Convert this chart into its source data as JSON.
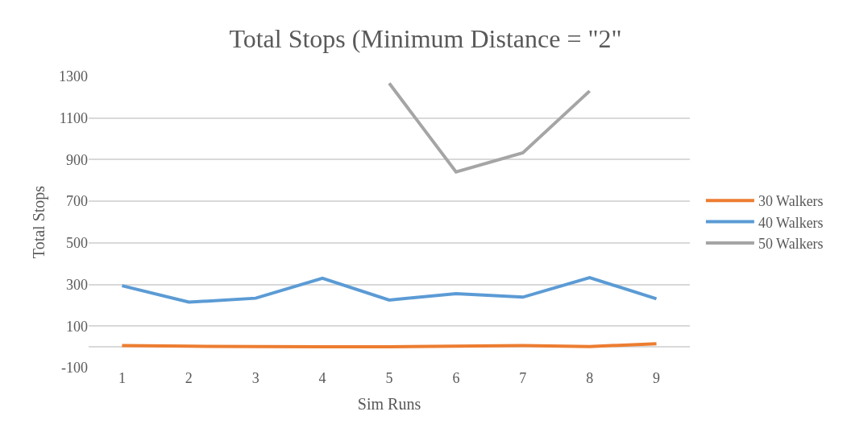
{
  "chart_data": {
    "type": "line",
    "title": "Total Stops (Minimum Distance = \"2\"",
    "xlabel": "Sim Runs",
    "ylabel": "Total Stops",
    "categories": [
      "1",
      "2",
      "3",
      "4",
      "5",
      "6",
      "7",
      "8",
      "9"
    ],
    "series": [
      {
        "name": "30 Walkers",
        "color": "#ed7d31",
        "values": [
          6,
          3,
          2,
          1,
          1,
          3,
          6,
          2,
          15
        ]
      },
      {
        "name": "40 Walkers",
        "color": "#5b9bd5",
        "values": [
          294,
          215,
          234,
          330,
          225,
          256,
          239,
          333,
          231
        ]
      },
      {
        "name": "50 Walkers",
        "color": "#a5a5a5",
        "values": [
          null,
          null,
          null,
          null,
          1267,
          841,
          933,
          1230,
          null
        ]
      }
    ],
    "ylim": [
      -100,
      1300
    ],
    "yticks": [
      -100,
      100,
      300,
      500,
      700,
      900,
      1100,
      1300
    ],
    "grid": "y",
    "legend": "right",
    "marker": "none",
    "line_style": "solid"
  }
}
